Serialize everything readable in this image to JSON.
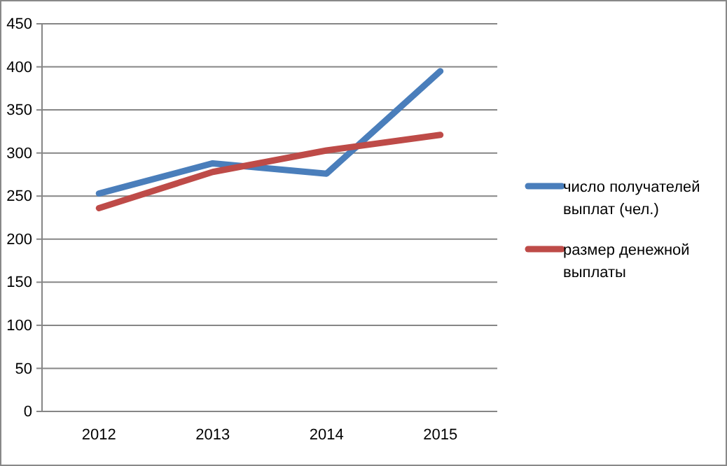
{
  "chart_data": {
    "type": "line",
    "categories": [
      "2012",
      "2013",
      "2014",
      "2015"
    ],
    "series": [
      {
        "name": "число получателей выплат (чел.)",
        "color": "#4a7ebb",
        "values": [
          253,
          288,
          276,
          395
        ]
      },
      {
        "name": "размер денежной выплаты",
        "color": "#be4b48",
        "values": [
          236,
          278,
          303,
          321
        ]
      }
    ],
    "ylim": [
      0,
      450
    ],
    "yticks": [
      0,
      50,
      100,
      150,
      200,
      250,
      300,
      350,
      400,
      450
    ],
    "grid": "y",
    "legend": "right",
    "marker": "none",
    "line_style": "solid"
  }
}
